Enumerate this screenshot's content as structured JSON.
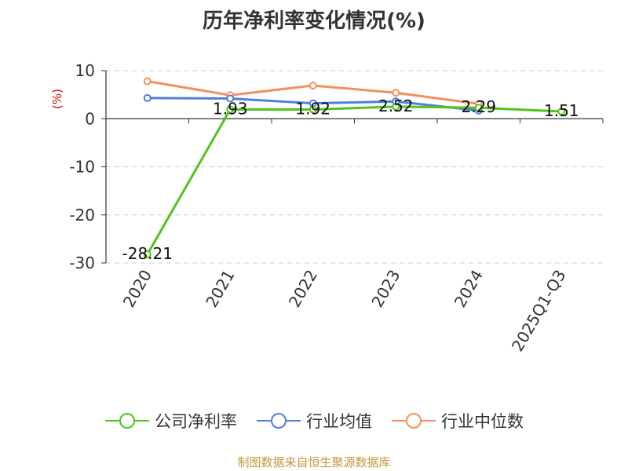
{
  "chart_data": {
    "type": "line",
    "title": "历年净利率变化情况(%)",
    "ylabel": "(%)",
    "xlabel": "",
    "categories": [
      "2020",
      "2021",
      "2022",
      "2023",
      "2024",
      "2025Q1-Q3"
    ],
    "ylim": [
      -30,
      10
    ],
    "yticks": [
      10,
      0,
      -10,
      -20,
      -30
    ],
    "grid": true,
    "legend_position": "bottom",
    "series": [
      {
        "name": "公司净利率",
        "color": "#52c41a",
        "values": [
          -28.21,
          1.93,
          1.92,
          2.52,
          2.29,
          1.51
        ],
        "data_labels": [
          "-28.21",
          "1.93",
          "1.92",
          "2.52",
          "2.29",
          "1.51"
        ]
      },
      {
        "name": "行业均值",
        "color": "#4e7fde",
        "values": [
          4.3,
          4.2,
          3.2,
          3.6,
          1.7,
          null
        ]
      },
      {
        "name": "行业中位数",
        "color": "#f58f5e",
        "values": [
          7.8,
          4.9,
          6.9,
          5.4,
          3.1,
          null
        ]
      }
    ]
  },
  "footer": {
    "source": "制图数据来自恒生聚源数据库"
  }
}
